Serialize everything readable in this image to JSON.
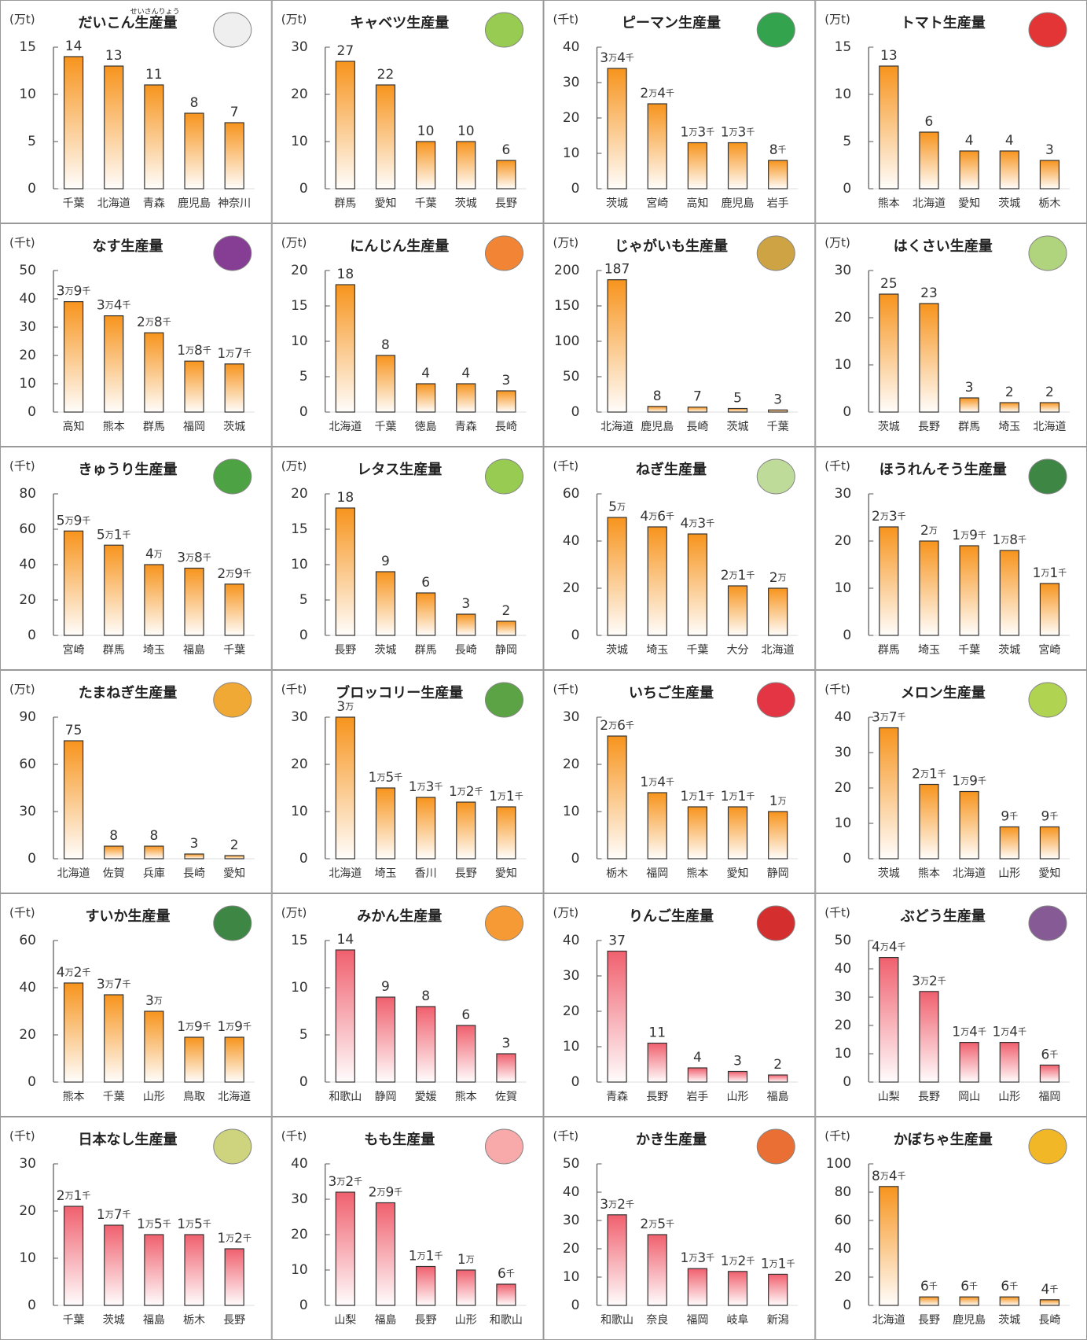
{
  "chart_data": [
    {
      "type": "bar",
      "title": "だいこん生産量",
      "title_ruby": "せいさんりょう",
      "unit_label": "(万t)",
      "categories": [
        "千葉",
        "北海道",
        "青森",
        "鹿児島",
        "神奈川"
      ],
      "values": [
        14,
        13,
        11,
        8,
        7
      ],
      "ylim": [
        0,
        15
      ],
      "yticks": [
        0,
        5,
        10,
        15
      ],
      "color": "#f7941d"
    },
    {
      "type": "bar",
      "title": "キャベツ生産量",
      "unit_label": "(万t)",
      "categories": [
        "群馬",
        "愛知",
        "千葉",
        "茨城",
        "長野"
      ],
      "values": [
        27,
        22,
        10,
        10,
        6
      ],
      "ylim": [
        0,
        30
      ],
      "yticks": [
        0,
        10,
        20,
        30
      ],
      "color": "#f7941d"
    },
    {
      "type": "bar",
      "title": "ピーマン生産量",
      "unit_label": "(千t)",
      "categories": [
        "茨城",
        "宮崎",
        "高知",
        "鹿児島",
        "岩手"
      ],
      "values": [
        34,
        24,
        13,
        13,
        8
      ],
      "value_labels": [
        "3万4千",
        "2万4千",
        "1万3千",
        "1万3千",
        "8千"
      ],
      "ylim": [
        0,
        40
      ],
      "yticks": [
        0,
        10,
        20,
        30,
        40
      ],
      "color": "#f7941d"
    },
    {
      "type": "bar",
      "title": "トマト生産量",
      "unit_label": "(万t)",
      "categories": [
        "熊本",
        "北海道",
        "愛知",
        "茨城",
        "栃木"
      ],
      "values": [
        13,
        6,
        4,
        4,
        3
      ],
      "ylim": [
        0,
        15
      ],
      "yticks": [
        0,
        5,
        10,
        15
      ],
      "color": "#f7941d"
    },
    {
      "type": "bar",
      "title": "なす生産量",
      "unit_label": "(千t)",
      "categories": [
        "高知",
        "熊本",
        "群馬",
        "福岡",
        "茨城"
      ],
      "values": [
        39,
        34,
        28,
        18,
        17
      ],
      "value_labels": [
        "3万9千",
        "3万4千",
        "2万8千",
        "1万8千",
        "1万7千"
      ],
      "ylim": [
        0,
        50
      ],
      "yticks": [
        0,
        10,
        20,
        30,
        40,
        50
      ],
      "color": "#f7941d"
    },
    {
      "type": "bar",
      "title": "にんじん生産量",
      "unit_label": "(万t)",
      "categories": [
        "北海道",
        "千葉",
        "徳島",
        "青森",
        "長崎"
      ],
      "values": [
        18,
        8,
        4,
        4,
        3
      ],
      "ylim": [
        0,
        20
      ],
      "yticks": [
        0,
        5,
        10,
        15,
        20
      ],
      "color": "#f7941d"
    },
    {
      "type": "bar",
      "title": "じゃがいも生産量",
      "unit_label": "(万t)",
      "categories": [
        "北海道",
        "鹿児島",
        "長崎",
        "茨城",
        "千葉"
      ],
      "values": [
        187,
        8,
        7,
        5,
        3
      ],
      "ylim": [
        0,
        200
      ],
      "yticks": [
        0,
        50,
        100,
        150,
        200
      ],
      "color": "#f7941d"
    },
    {
      "type": "bar",
      "title": "はくさい生産量",
      "unit_label": "(万t)",
      "categories": [
        "茨城",
        "長野",
        "群馬",
        "埼玉",
        "北海道"
      ],
      "values": [
        25,
        23,
        3,
        2,
        2
      ],
      "ylim": [
        0,
        30
      ],
      "yticks": [
        0,
        10,
        20,
        30
      ],
      "color": "#f7941d"
    },
    {
      "type": "bar",
      "title": "きゅうり生産量",
      "unit_label": "(千t)",
      "categories": [
        "宮崎",
        "群馬",
        "埼玉",
        "福島",
        "千葉"
      ],
      "values": [
        59,
        51,
        40,
        38,
        29
      ],
      "value_labels": [
        "5万9千",
        "5万1千",
        "4万",
        "3万8千",
        "2万9千"
      ],
      "ylim": [
        0,
        80
      ],
      "yticks": [
        0,
        20,
        40,
        60,
        80
      ],
      "color": "#f7941d"
    },
    {
      "type": "bar",
      "title": "レタス生産量",
      "unit_label": "(万t)",
      "categories": [
        "長野",
        "茨城",
        "群馬",
        "長崎",
        "静岡"
      ],
      "values": [
        18,
        9,
        6,
        3,
        2
      ],
      "ylim": [
        0,
        20
      ],
      "yticks": [
        0,
        5,
        10,
        15,
        20
      ],
      "color": "#f7941d"
    },
    {
      "type": "bar",
      "title": "ねぎ生産量",
      "unit_label": "(千t)",
      "categories": [
        "茨城",
        "埼玉",
        "千葉",
        "大分",
        "北海道"
      ],
      "values": [
        50,
        46,
        43,
        21,
        20
      ],
      "value_labels": [
        "5万",
        "4万6千",
        "4万3千",
        "2万1千",
        "2万"
      ],
      "ylim": [
        0,
        60
      ],
      "yticks": [
        0,
        20,
        40,
        60
      ],
      "color": "#f7941d"
    },
    {
      "type": "bar",
      "title": "ほうれんそう生産量",
      "unit_label": "(千t)",
      "categories": [
        "群馬",
        "埼玉",
        "千葉",
        "茨城",
        "宮崎"
      ],
      "values": [
        23,
        20,
        19,
        18,
        11
      ],
      "value_labels": [
        "2万3千",
        "2万",
        "1万9千",
        "1万8千",
        "1万1千"
      ],
      "ylim": [
        0,
        30
      ],
      "yticks": [
        0,
        10,
        20,
        30
      ],
      "color": "#f7941d"
    },
    {
      "type": "bar",
      "title": "たまねぎ生産量",
      "unit_label": "(万t)",
      "categories": [
        "北海道",
        "佐賀",
        "兵庫",
        "長崎",
        "愛知"
      ],
      "values": [
        75,
        8,
        8,
        3,
        2
      ],
      "ylim": [
        0,
        90
      ],
      "yticks": [
        0,
        30,
        60,
        90
      ],
      "color": "#f7941d"
    },
    {
      "type": "bar",
      "title": "ブロッコリー生産量",
      "unit_label": "(千t)",
      "categories": [
        "北海道",
        "埼玉",
        "香川",
        "長野",
        "愛知"
      ],
      "values": [
        30,
        15,
        13,
        12,
        11
      ],
      "value_labels": [
        "3万",
        "1万5千",
        "1万3千",
        "1万2千",
        "1万1千"
      ],
      "ylim": [
        0,
        30
      ],
      "yticks": [
        0,
        10,
        20,
        30
      ],
      "color": "#f7941d"
    },
    {
      "type": "bar",
      "title": "いちご生産量",
      "unit_label": "(千t)",
      "categories": [
        "栃木",
        "福岡",
        "熊本",
        "愛知",
        "静岡"
      ],
      "values": [
        26,
        14,
        11,
        11,
        10
      ],
      "value_labels": [
        "2万6千",
        "1万4千",
        "1万1千",
        "1万1千",
        "1万"
      ],
      "ylim": [
        0,
        30
      ],
      "yticks": [
        0,
        10,
        20,
        30
      ],
      "color": "#f7941d"
    },
    {
      "type": "bar",
      "title": "メロン生産量",
      "unit_label": "(千t)",
      "categories": [
        "茨城",
        "熊本",
        "北海道",
        "山形",
        "愛知"
      ],
      "values": [
        37,
        21,
        19,
        9,
        9
      ],
      "value_labels": [
        "3万7千",
        "2万1千",
        "1万9千",
        "9千",
        "9千"
      ],
      "ylim": [
        0,
        40
      ],
      "yticks": [
        0,
        10,
        20,
        30,
        40
      ],
      "color": "#f7941d"
    },
    {
      "type": "bar",
      "title": "すいか生産量",
      "unit_label": "(千t)",
      "categories": [
        "熊本",
        "千葉",
        "山形",
        "鳥取",
        "北海道"
      ],
      "values": [
        42,
        37,
        30,
        19,
        19
      ],
      "value_labels": [
        "4万2千",
        "3万7千",
        "3万",
        "1万9千",
        "1万9千"
      ],
      "ylim": [
        0,
        60
      ],
      "yticks": [
        0,
        20,
        40,
        60
      ],
      "color": "#f7941d"
    },
    {
      "type": "bar",
      "title": "みかん生産量",
      "unit_label": "(万t)",
      "categories": [
        "和歌山",
        "静岡",
        "愛媛",
        "熊本",
        "佐賀"
      ],
      "values": [
        14,
        9,
        8,
        6,
        3
      ],
      "ylim": [
        0,
        15
      ],
      "yticks": [
        0,
        5,
        10,
        15
      ],
      "color": "#f0606e"
    },
    {
      "type": "bar",
      "title": "りんご生産量",
      "unit_label": "(万t)",
      "categories": [
        "青森",
        "長野",
        "岩手",
        "山形",
        "福島"
      ],
      "values": [
        37,
        11,
        4,
        3,
        2
      ],
      "ylim": [
        0,
        40
      ],
      "yticks": [
        0,
        10,
        20,
        30,
        40
      ],
      "color": "#f0606e"
    },
    {
      "type": "bar",
      "title": "ぶどう生産量",
      "unit_label": "(千t)",
      "categories": [
        "山梨",
        "長野",
        "岡山",
        "山形",
        "福岡"
      ],
      "values": [
        44,
        32,
        14,
        14,
        6
      ],
      "value_labels": [
        "4万4千",
        "3万2千",
        "1万4千",
        "1万4千",
        "6千"
      ],
      "ylim": [
        0,
        50
      ],
      "yticks": [
        0,
        10,
        20,
        30,
        40,
        50
      ],
      "color": "#f0606e"
    },
    {
      "type": "bar",
      "title": "日本なし生産量",
      "unit_label": "(千t)",
      "categories": [
        "千葉",
        "茨城",
        "福島",
        "栃木",
        "長野"
      ],
      "values": [
        21,
        17,
        15,
        15,
        12
      ],
      "value_labels": [
        "2万1千",
        "1万7千",
        "1万5千",
        "1万5千",
        "1万2千"
      ],
      "ylim": [
        0,
        30
      ],
      "yticks": [
        0,
        10,
        20,
        30
      ],
      "color": "#f0606e"
    },
    {
      "type": "bar",
      "title": "もも生産量",
      "unit_label": "(千t)",
      "categories": [
        "山梨",
        "福島",
        "長野",
        "山形",
        "和歌山"
      ],
      "values": [
        32,
        29,
        11,
        10,
        6
      ],
      "value_labels": [
        "3万2千",
        "2万9千",
        "1万1千",
        "1万",
        "6千"
      ],
      "ylim": [
        0,
        40
      ],
      "yticks": [
        0,
        10,
        20,
        30,
        40
      ],
      "color": "#f0606e"
    },
    {
      "type": "bar",
      "title": "かき生産量",
      "unit_label": "(千t)",
      "categories": [
        "和歌山",
        "奈良",
        "福岡",
        "岐阜",
        "新潟"
      ],
      "values": [
        32,
        25,
        13,
        12,
        11
      ],
      "value_labels": [
        "3万2千",
        "2万5千",
        "1万3千",
        "1万2千",
        "1万1千"
      ],
      "ylim": [
        0,
        50
      ],
      "yticks": [
        0,
        10,
        20,
        30,
        40,
        50
      ],
      "color": "#f0606e"
    },
    {
      "type": "bar",
      "title": "かぼちゃ生産量",
      "unit_label": "(千t)",
      "categories": [
        "北海道",
        "長野",
        "鹿児島",
        "茨城",
        "長崎"
      ],
      "values": [
        84,
        6,
        6,
        6,
        4
      ],
      "value_labels": [
        "8万4千",
        "6千",
        "6千",
        "6千",
        "4千"
      ],
      "ylim": [
        0,
        100
      ],
      "yticks": [
        0,
        20,
        40,
        60,
        80,
        100
      ],
      "color": "#f7941d"
    }
  ]
}
